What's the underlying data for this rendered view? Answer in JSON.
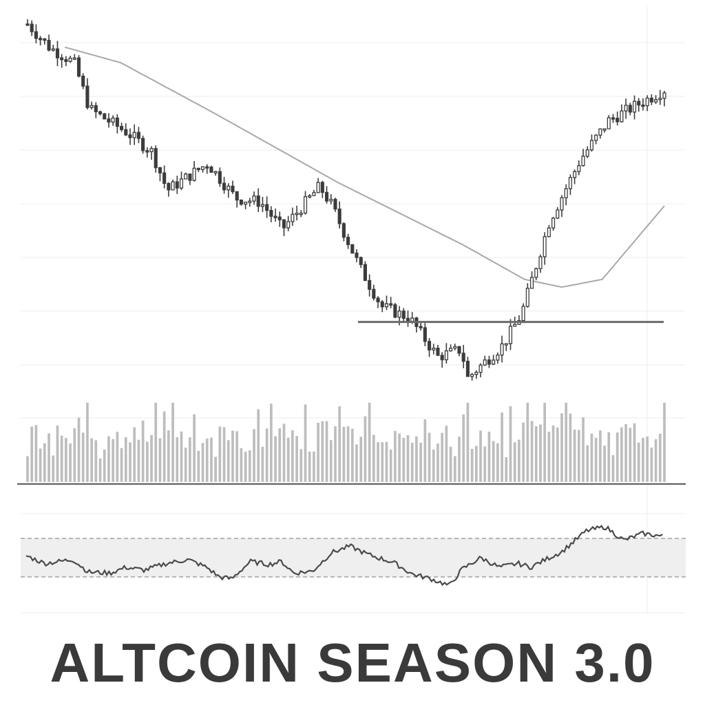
{
  "title": "ALTCOIN SEASON 3.0",
  "colors": {
    "candle": "#3c3c3c",
    "moving_average": "#a8a8a8",
    "volume": "#bdbdbd",
    "oscillator": "#4a4a4a",
    "grid": "#ececec",
    "oscillator_band": "#efefef",
    "support_line": "#6a6a6a"
  },
  "chart_data": [
    {
      "type": "candlestick",
      "title": "",
      "xlabel": "",
      "ylabel": "",
      "grid": true,
      "x_count": 150,
      "ylim": [
        0,
        100
      ],
      "close_path": [
        [
          0,
          97
        ],
        [
          7,
          91
        ],
        [
          15,
          87
        ],
        [
          20,
          75
        ],
        [
          32,
          69
        ],
        [
          40,
          64
        ],
        [
          45,
          54
        ],
        [
          58,
          61
        ],
        [
          67,
          52
        ],
        [
          75,
          51
        ],
        [
          82,
          44
        ],
        [
          94,
          55
        ],
        [
          98,
          50
        ],
        [
          107,
          34
        ],
        [
          114,
          24
        ],
        [
          123,
          21
        ],
        [
          132,
          11
        ],
        [
          140,
          13
        ],
        [
          141,
          5
        ],
        [
          153,
          14
        ],
        [
          159,
          22
        ],
        [
          168,
          46
        ],
        [
          178,
          62
        ],
        [
          187,
          72
        ],
        [
          196,
          76
        ],
        [
          205,
          80
        ]
      ],
      "moving_average": [
        [
          12,
          91
        ],
        [
          30,
          87
        ],
        [
          60,
          74
        ],
        [
          100,
          56
        ],
        [
          140,
          40
        ],
        [
          160,
          31
        ],
        [
          172,
          29
        ],
        [
          185,
          31
        ],
        [
          205,
          50
        ]
      ],
      "support_level": 20
    },
    {
      "type": "bar",
      "title": "",
      "series_label": "",
      "ylim": [
        0,
        100
      ]
    },
    {
      "type": "line",
      "title": "",
      "ylim": [
        0,
        100
      ],
      "bands": [
        30,
        70
      ],
      "points": [
        [
          0,
          52
        ],
        [
          6,
          44
        ],
        [
          15,
          48
        ],
        [
          20,
          35
        ],
        [
          27,
          34
        ],
        [
          32,
          40
        ],
        [
          38,
          37
        ],
        [
          45,
          44
        ],
        [
          52,
          48
        ],
        [
          58,
          40
        ],
        [
          62,
          30
        ],
        [
          66,
          28
        ],
        [
          72,
          46
        ],
        [
          78,
          43
        ],
        [
          82,
          46
        ],
        [
          86,
          34
        ],
        [
          92,
          36
        ],
        [
          98,
          55
        ],
        [
          104,
          62
        ],
        [
          110,
          53
        ],
        [
          118,
          45
        ],
        [
          124,
          33
        ],
        [
          130,
          28
        ],
        [
          136,
          21
        ],
        [
          140,
          38
        ],
        [
          146,
          50
        ],
        [
          152,
          40
        ],
        [
          158,
          44
        ],
        [
          162,
          40
        ],
        [
          168,
          50
        ],
        [
          172,
          56
        ],
        [
          180,
          78
        ],
        [
          186,
          82
        ],
        [
          192,
          68
        ],
        [
          198,
          75
        ],
        [
          205,
          72
        ]
      ]
    }
  ]
}
